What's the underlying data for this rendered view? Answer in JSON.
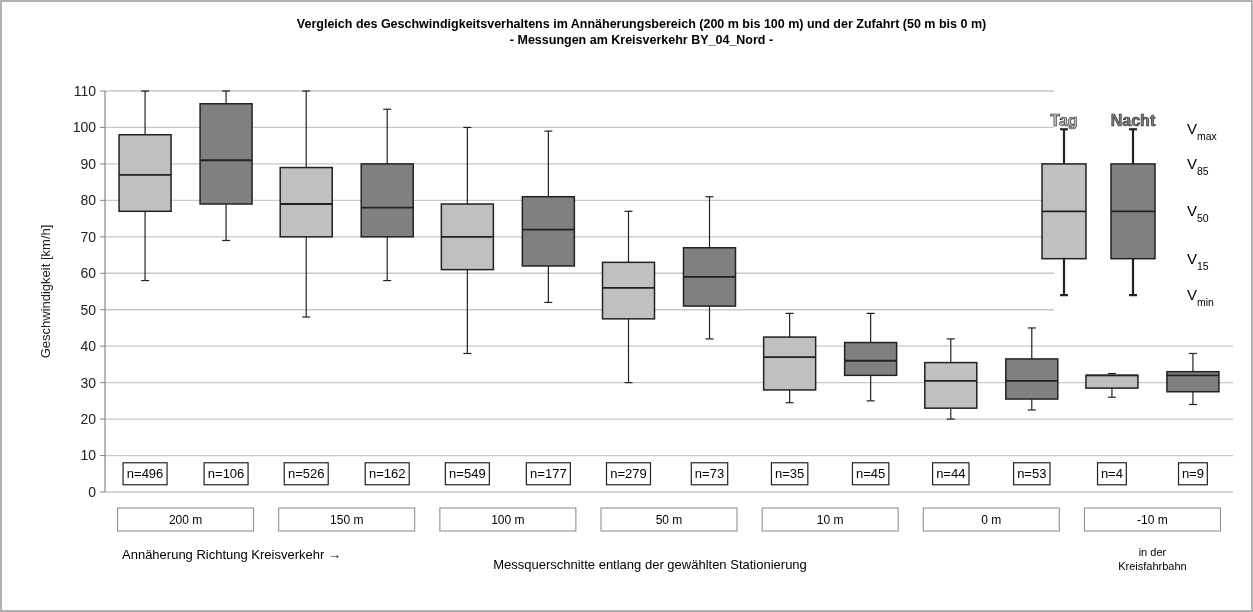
{
  "chart_data": {
    "type": "box",
    "title": "Vergleich des Geschwindigkeitsverhaltens im Annäherungsbereich (200 m bis 100 m) und der Zufahrt (50 m bis 0 m)",
    "subtitle": "- Messungen am Kreisverkehr BY_04_Nord -",
    "ylabel": "Geschwindigkeit [km/h]",
    "categories": [
      "200 m",
      "150 m",
      "100 m",
      "50 m",
      "10 m",
      "0 m",
      "-10 m"
    ],
    "series": [
      {
        "name": "Tag",
        "color": "#c0c0c0",
        "boxes": [
          {
            "low": 58,
            "q1": 77,
            "median": 87,
            "q3": 98,
            "high": 110
          },
          {
            "low": 48,
            "q1": 70,
            "median": 79,
            "q3": 89,
            "high": 110
          },
          {
            "low": 38,
            "q1": 61,
            "median": 70,
            "q3": 79,
            "high": 100
          },
          {
            "low": 30,
            "q1": 47.5,
            "median": 56,
            "q3": 63,
            "high": 77
          },
          {
            "low": 24.5,
            "q1": 28,
            "median": 37,
            "q3": 42.5,
            "high": 49
          },
          {
            "low": 20,
            "q1": 23,
            "median": 30.5,
            "q3": 35.5,
            "high": 42
          },
          {
            "low": 26,
            "q1": 28.5,
            "median": 32,
            "q3": 32,
            "high": 32.5
          }
        ]
      },
      {
        "name": "Nacht",
        "color": "#808080",
        "boxes": [
          {
            "low": 69,
            "q1": 79,
            "median": 91,
            "q3": 106.5,
            "high": 110
          },
          {
            "low": 58,
            "q1": 70,
            "median": 78,
            "q3": 90,
            "high": 105
          },
          {
            "low": 52,
            "q1": 62,
            "median": 72,
            "q3": 81,
            "high": 99
          },
          {
            "low": 42,
            "q1": 51,
            "median": 59,
            "q3": 67,
            "high": 81
          },
          {
            "low": 25,
            "q1": 32,
            "median": 36,
            "q3": 41,
            "high": 49
          },
          {
            "low": 22.5,
            "q1": 25.5,
            "median": 30.5,
            "q3": 36.5,
            "high": 45
          },
          {
            "low": 24,
            "q1": 27.5,
            "median": 32,
            "q3": 33,
            "high": 38
          }
        ]
      }
    ],
    "ylim": [
      0,
      110
    ],
    "yticks": [
      0,
      10,
      20,
      30,
      40,
      50,
      60,
      70,
      80,
      90,
      100,
      110
    ],
    "grid": "y",
    "legend": "top right",
    "annotations": [
      "n=496",
      "n=106",
      "n=526",
      "n=162",
      "n=549",
      "n=177",
      "n=279",
      "n=73",
      "n=35",
      "n=45",
      "n=44",
      "n=53",
      "n=4",
      "n=9",
      "V$_{max}$",
      "V$_{85}$",
      "V$_{50}$",
      "V$_{15}$",
      "V$_{min}$",
      "Annäherung Richtung Kreisverkehr →",
      "Messquerschnitte entlang der gewählten Stationierung",
      "in der Kreisfahrbahn"
    ]
  }
}
